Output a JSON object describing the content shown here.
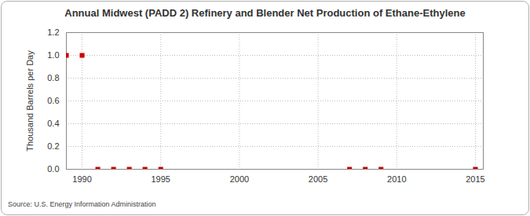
{
  "chart_data": {
    "type": "scatter",
    "title": "Annual Midwest (PADD 2) Refinery and Blender Net Production of Ethane-Ethylene",
    "y_label": "Thousand Barrels per Day",
    "caption": "Source: U.S. Energy Information Administration",
    "x": [
      1989,
      1990,
      1991,
      1992,
      1993,
      1994,
      1995,
      2007,
      2008,
      2009,
      2015
    ],
    "values": [
      1.0,
      1.0,
      0,
      0,
      0,
      0,
      0,
      0,
      0,
      0,
      0
    ],
    "color": "#cc0000",
    "marker": "square",
    "xlim": [
      1989,
      2015.5
    ],
    "xticks": [
      1990,
      1995,
      2000,
      2005,
      2010,
      2015
    ],
    "ylim": [
      0,
      1.2
    ],
    "yticks": [
      {
        "value": 0,
        "label": "0.0"
      },
      {
        "value": 0.2,
        "label": "0.2"
      },
      {
        "value": 0.4,
        "label": "0.4"
      },
      {
        "value": 0.6,
        "label": "0.6"
      },
      {
        "value": 0.8,
        "label": "0.8"
      },
      {
        "value": 1.0,
        "label": "1.0"
      },
      {
        "value": 1.2,
        "label": "1.2"
      }
    ],
    "grid": true
  }
}
